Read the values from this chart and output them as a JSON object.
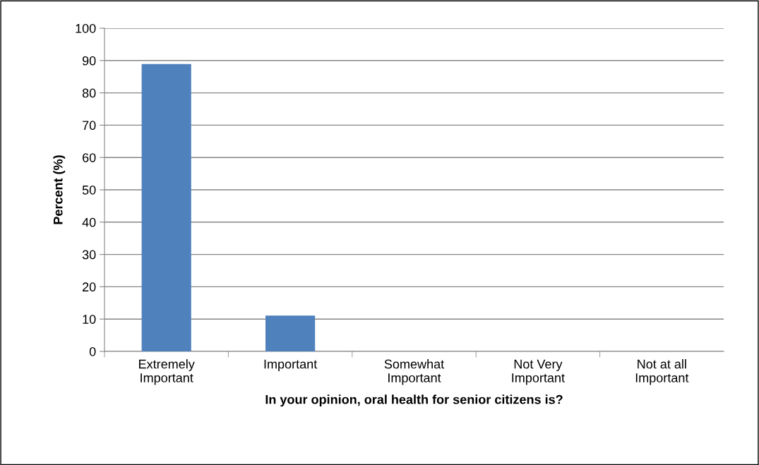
{
  "chart_data": {
    "type": "bar",
    "xlabel": "In your opinion, oral health for senior citizens is?",
    "ylabel": "Percent (%)",
    "categories": [
      "Extremely\nImportant",
      "Important",
      "Somewhat\nImportant",
      "Not Very\nImportant",
      "Not at all\nImportant"
    ],
    "values": [
      88.9,
      11.1,
      0,
      0,
      0
    ],
    "color": "#4f81bd",
    "ylim": [
      0,
      100
    ],
    "yticks": [
      0,
      10,
      20,
      30,
      40,
      50,
      60,
      70,
      80,
      90,
      100
    ],
    "grid": "y",
    "legend": false
  }
}
